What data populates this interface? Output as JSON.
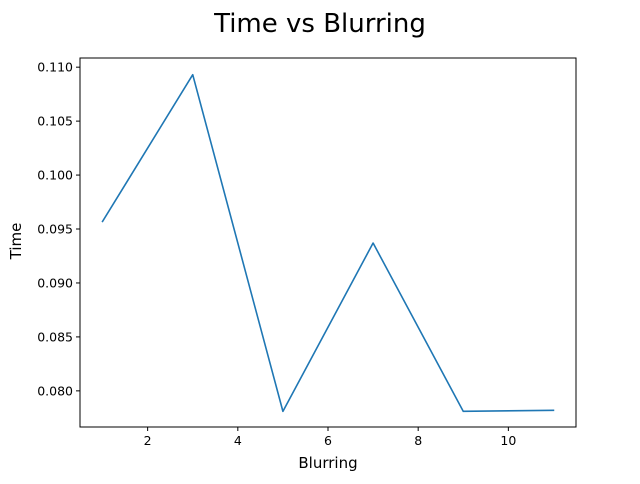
{
  "chart_data": {
    "type": "line",
    "title": "Time vs Blurring",
    "xlabel": "Blurring",
    "ylabel": "Time",
    "xlim": [
      0.5,
      11.5
    ],
    "ylim": [
      0.07665,
      0.11085
    ],
    "x_ticks": [
      2,
      4,
      6,
      8,
      10
    ],
    "x_tick_labels": [
      "2",
      "4",
      "6",
      "8",
      "10"
    ],
    "y_ticks": [
      0.08,
      0.085,
      0.09,
      0.095,
      0.1,
      0.105,
      0.11
    ],
    "y_tick_labels": [
      "0.080",
      "0.085",
      "0.090",
      "0.095",
      "0.100",
      "0.105",
      "0.110"
    ],
    "grid": false,
    "legend": "none",
    "series": [
      {
        "color": "#1f77b4",
        "x": [
          1,
          3,
          5,
          7,
          9,
          11
        ],
        "y": [
          0.0957,
          0.1093,
          0.0781,
          0.0937,
          0.0781,
          0.0782
        ]
      }
    ]
  }
}
